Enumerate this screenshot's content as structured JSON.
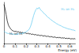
{
  "chart_data": {
    "type": "line",
    "x_label": "Energy (eV)",
    "x": [
      0,
      0.01,
      0.02,
      0.03,
      0.04,
      0.05,
      0.06,
      0.07,
      0.08,
      0.09,
      0.1,
      0.11,
      0.12,
      0.13,
      0.14,
      0.15,
      0.16,
      0.17,
      0.18,
      0.19,
      0.2,
      0.21,
      0.22,
      0.23,
      0.24,
      0.25,
      0.26,
      0.27,
      0.28,
      0.29,
      0.3,
      0.31,
      0.32,
      0.33,
      0.34,
      0.35,
      0.36,
      0.37,
      0.38,
      0.39,
      0.4,
      0.41,
      0.42,
      0.43,
      0.44,
      0.45,
      0.46,
      0.47,
      0.48,
      0.49,
      0.5,
      0.51,
      0.52,
      0.53,
      0.54,
      0.55,
      0.56,
      0.57,
      0.58,
      0.59,
      0.6,
      0.61,
      0.62,
      0.63,
      0.64,
      0.65
    ],
    "series": [
      {
        "name": "H₂ on Hf",
        "color": "#000000",
        "values": [
          0.95,
          0.85,
          0.7,
          0.55,
          0.45,
          0.4,
          0.36,
          0.33,
          0.31,
          0.3,
          0.29,
          0.3,
          0.28,
          0.29,
          0.27,
          0.28,
          0.26,
          0.27,
          0.25,
          0.26,
          0.25,
          0.24,
          0.25,
          0.23,
          0.24,
          0.22,
          0.23,
          0.22,
          0.21,
          0.22,
          0.2,
          0.21,
          0.2,
          0.19,
          0.2,
          0.19,
          0.18,
          0.19,
          0.18,
          0.17,
          0.18,
          0.17,
          0.16,
          0.17,
          0.16,
          0.15,
          0.16,
          0.15,
          0.14,
          0.15,
          0.14,
          0.15,
          0.13,
          0.14,
          0.13,
          0.14,
          0.12,
          0.13,
          0.12,
          0.13,
          0.12,
          0.11,
          0.12,
          0.11,
          0.12,
          0.11
        ]
      },
      {
        "name": "H₂ on H₂",
        "color": "#5bc8f0",
        "values": [
          0.3,
          0.28,
          0.26,
          0.25,
          0.24,
          0.25,
          0.23,
          0.24,
          0.22,
          0.23,
          0.22,
          0.23,
          0.22,
          0.24,
          0.23,
          0.25,
          0.24,
          0.26,
          0.25,
          0.27,
          0.28,
          0.3,
          0.32,
          0.35,
          0.4,
          0.48,
          0.58,
          0.68,
          0.76,
          0.82,
          0.86,
          0.84,
          0.88,
          0.83,
          0.8,
          0.78,
          0.74,
          0.72,
          0.7,
          0.66,
          0.64,
          0.62,
          0.6,
          0.57,
          0.56,
          0.53,
          0.52,
          0.5,
          0.48,
          0.47,
          0.45,
          0.44,
          0.43,
          0.41,
          0.4,
          0.39,
          0.38,
          0.37,
          0.36,
          0.35,
          0.35,
          0.34,
          0.33,
          0.33,
          0.32,
          0.31
        ]
      }
    ],
    "xlim": [
      0,
      0.65
    ],
    "xticks": [
      0,
      0.1,
      0.2,
      0.3,
      0.4,
      0.5,
      0.6
    ],
    "ylim": [
      0,
      1
    ],
    "tick_labels": "x",
    "grid": false
  }
}
